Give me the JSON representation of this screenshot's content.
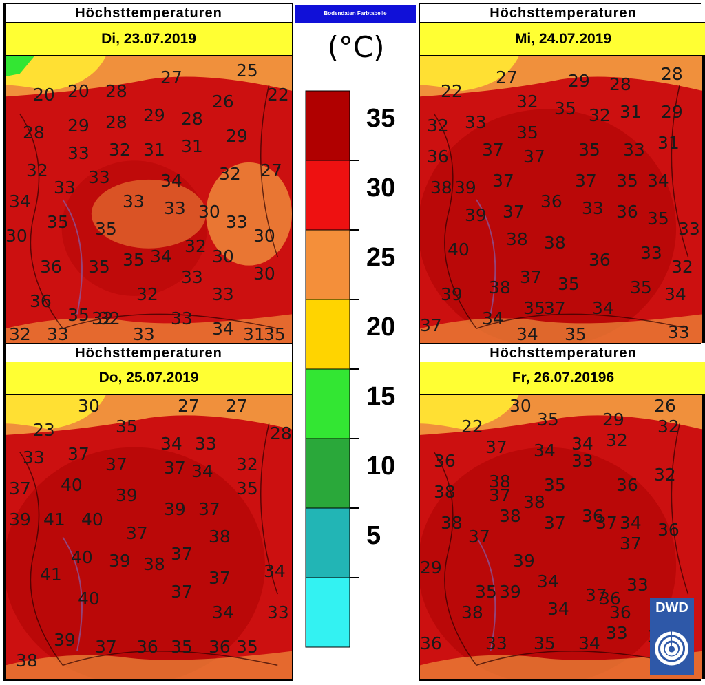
{
  "panels": [
    {
      "title": "Höchsttemperaturen",
      "date": "Di, 23.07.2019",
      "labels": [
        "20",
        "20",
        "28",
        "27",
        "25",
        "26",
        "22",
        "28",
        "29",
        "28",
        "29",
        "28",
        "29",
        "33",
        "32",
        "31",
        "31",
        "32",
        "27",
        "32",
        "33",
        "33",
        "34",
        "34",
        "33",
        "33",
        "30",
        "33",
        "35",
        "35",
        "30",
        "30",
        "36",
        "35",
        "35",
        "34",
        "32",
        "30",
        "30",
        "33",
        "36",
        "32",
        "33",
        "33",
        "32",
        "35",
        "32",
        "33",
        "32",
        "34",
        "35",
        "33",
        "31"
      ]
    },
    {
      "title": "Höchsttemperaturen",
      "date": "Mi, 24.07.2019",
      "labels": [
        "22",
        "27",
        "29",
        "28",
        "28",
        "32",
        "29",
        "32",
        "33",
        "35",
        "32",
        "31",
        "31",
        "35",
        "36",
        "37",
        "37",
        "35",
        "33",
        "38",
        "39",
        "37",
        "37",
        "35",
        "34",
        "37",
        "36",
        "33",
        "39",
        "36",
        "35",
        "33",
        "40",
        "38",
        "38",
        "36",
        "33",
        "32",
        "37",
        "39",
        "38",
        "35",
        "35",
        "34",
        "37",
        "34",
        "35",
        "34",
        "37",
        "34",
        "35",
        "33"
      ]
    },
    {
      "title": "Höchsttemperaturen",
      "date": "Do, 25.07.2019",
      "labels": [
        "30",
        "27",
        "27",
        "23",
        "35",
        "34",
        "33",
        "28",
        "33",
        "37",
        "37",
        "37",
        "34",
        "32",
        "37",
        "40",
        "39",
        "35",
        "39",
        "41",
        "40",
        "39",
        "37",
        "38",
        "37",
        "41",
        "40",
        "39",
        "38",
        "37",
        "37",
        "34",
        "40",
        "37",
        "34",
        "33",
        "39",
        "37",
        "36",
        "35",
        "36",
        "35",
        "38"
      ]
    },
    {
      "title": "Höchsttemperaturen",
      "date": "Fr, 26.07.20196",
      "labels": [
        "30",
        "29",
        "26",
        "22",
        "32",
        "34",
        "32",
        "35",
        "36",
        "37",
        "34",
        "33",
        "32",
        "38",
        "38",
        "36",
        "35",
        "38",
        "37",
        "37",
        "38",
        "37",
        "36",
        "34",
        "38",
        "37",
        "29",
        "39",
        "37",
        "36",
        "34",
        "33",
        "39",
        "37",
        "38",
        "35",
        "36",
        "36",
        "36",
        "34",
        "33",
        "35",
        "34",
        "33",
        "35"
      ]
    }
  ],
  "legend": {
    "header": "Bodendaten Farbtabelle",
    "unit": "(°C)",
    "ticks": [
      "35",
      "30",
      "25",
      "20",
      "15",
      "10",
      "5"
    ],
    "colors": [
      "#b00000",
      "#ee1111",
      "#f48f3a",
      "#ffd400",
      "#33e633",
      "#2aa83a",
      "#22b5b5",
      "#33f2f2"
    ]
  },
  "logo": "DWD",
  "colors": {
    "hot": "#cc1010",
    "veryhot": "#b40606",
    "warm": "#f0903c",
    "mild": "#ffe033",
    "green": "#33e633"
  }
}
